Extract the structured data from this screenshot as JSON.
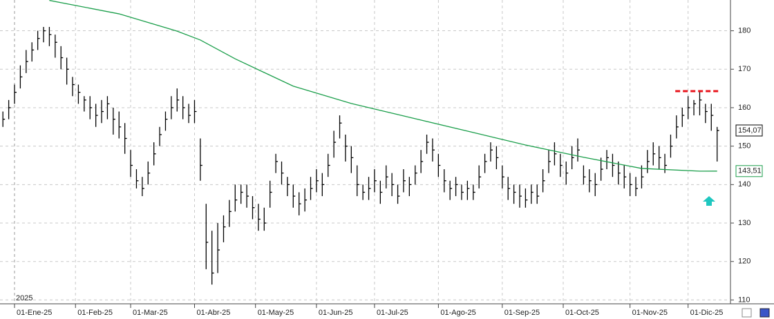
{
  "chart_data": {
    "type": "ohlc",
    "xlim": [
      -0.5,
      125.3
    ],
    "ylim": [
      109,
      188
    ],
    "yticks": [
      110,
      120,
      130,
      140,
      150,
      160,
      170,
      180
    ],
    "xticks": [
      {
        "value": 2,
        "label": "01-Ene-25"
      },
      {
        "value": 12.5,
        "label": "01-Feb-25"
      },
      {
        "value": 22,
        "label": "01-Mar-25"
      },
      {
        "value": 33,
        "label": "01-Abr-25"
      },
      {
        "value": 43.5,
        "label": "01-May-25"
      },
      {
        "value": 54,
        "label": "01-Jun-25"
      },
      {
        "value": 64,
        "label": "01-Jul-25"
      },
      {
        "value": 75,
        "label": "01-Ago-25"
      },
      {
        "value": 86,
        "label": "01-Sep-25"
      },
      {
        "value": 96.5,
        "label": "01-Oct-25"
      },
      {
        "value": 108,
        "label": "01-Nov-25"
      },
      {
        "value": 118,
        "label": "01-Dic-25"
      }
    ],
    "year_label": "2025",
    "grid": true,
    "ohlc": {
      "color": "#000000",
      "high": [
        159,
        162,
        166,
        171,
        175,
        177,
        180,
        181,
        181,
        179,
        176,
        173,
        168,
        166,
        163,
        163,
        161,
        162,
        163,
        160,
        159,
        156,
        149,
        144,
        142,
        146,
        151,
        155,
        159,
        163,
        165,
        163,
        161,
        162,
        152,
        135,
        128,
        130,
        132,
        136,
        140,
        140,
        140,
        137,
        135,
        134,
        141,
        148,
        146,
        142,
        140,
        138,
        139,
        142,
        144,
        143,
        148,
        154,
        158,
        153,
        150,
        145,
        140,
        142,
        144,
        141,
        145,
        143,
        140,
        144,
        142,
        145,
        149,
        153,
        152,
        148,
        144,
        141,
        142,
        140,
        141,
        140,
        145,
        148,
        151,
        150,
        145,
        142,
        140,
        140,
        139,
        140,
        140,
        144,
        149,
        151,
        148,
        146,
        150,
        152,
        145,
        144,
        143,
        147,
        149,
        148,
        146,
        145,
        143,
        142,
        145,
        149,
        151,
        150,
        148,
        153,
        158,
        160,
        163,
        162,
        164.5,
        161,
        161,
        155
      ],
      "low": [
        155,
        157,
        161,
        165,
        169,
        172,
        175,
        177,
        176,
        173,
        170,
        166,
        163,
        161,
        159,
        157,
        155,
        156,
        157,
        153,
        152,
        148,
        142,
        139,
        137,
        140,
        145,
        150,
        154,
        157,
        159,
        157,
        156,
        156,
        141,
        118,
        114,
        117,
        125,
        129,
        133,
        135,
        134,
        131,
        128,
        128,
        134,
        143,
        140,
        137,
        134,
        132,
        133,
        136,
        138,
        137,
        142,
        147,
        152,
        146,
        143,
        137,
        136,
        136,
        138,
        135,
        139,
        137,
        135,
        138,
        137,
        140,
        143,
        148,
        146,
        142,
        138,
        136,
        137,
        136,
        136,
        136,
        139,
        143,
        146,
        144,
        139,
        136,
        135,
        134,
        134,
        135,
        135,
        138,
        143,
        145,
        142,
        140,
        144,
        146,
        140,
        138,
        137,
        141,
        144,
        142,
        140,
        139,
        137,
        137,
        139,
        143,
        145,
        144,
        143,
        147,
        152,
        155,
        157,
        158,
        158,
        156,
        154,
        146
      ],
      "close": [
        157,
        160,
        164,
        168,
        172,
        175,
        178,
        180,
        179,
        177,
        173,
        170,
        166,
        164,
        162,
        160,
        158,
        159,
        161,
        157,
        155,
        152,
        145,
        141,
        139,
        143,
        148,
        153,
        157,
        160,
        162,
        160,
        158,
        159,
        145,
        125,
        117,
        123,
        129,
        133,
        136,
        138,
        137,
        134,
        131,
        130,
        138,
        146,
        143,
        140,
        137,
        135,
        136,
        139,
        141,
        140,
        145,
        151,
        156,
        150,
        147,
        140,
        138,
        139,
        141,
        138,
        142,
        140,
        137,
        141,
        140,
        143,
        146,
        151,
        149,
        145,
        141,
        139,
        140,
        138,
        139,
        138,
        142,
        146,
        149,
        147,
        142,
        139,
        138,
        137,
        136,
        138,
        137,
        141,
        146,
        148,
        145,
        143,
        147,
        149,
        142,
        141,
        140,
        144,
        147,
        145,
        143,
        142,
        140,
        139,
        142,
        146,
        148,
        147,
        145,
        150,
        155,
        158,
        160,
        161,
        162,
        159,
        158,
        154.07
      ],
      "last_value_label": "154,07"
    },
    "ma": {
      "color": "#1a9e4a",
      "x": [
        8,
        20,
        30,
        34,
        40,
        50,
        60,
        70,
        80,
        90,
        100,
        110,
        120,
        123
      ],
      "values": [
        187.9,
        184.4,
        179.9,
        177.6,
        172.7,
        165.6,
        161.1,
        157.5,
        153.9,
        150.3,
        147.1,
        144.2,
        143.5,
        143.51
      ],
      "last_value_label": "143,51"
    },
    "resistance": {
      "value": 164.3,
      "x": [
        115.8,
        123.3
      ],
      "color": "#e8141c"
    }
  }
}
